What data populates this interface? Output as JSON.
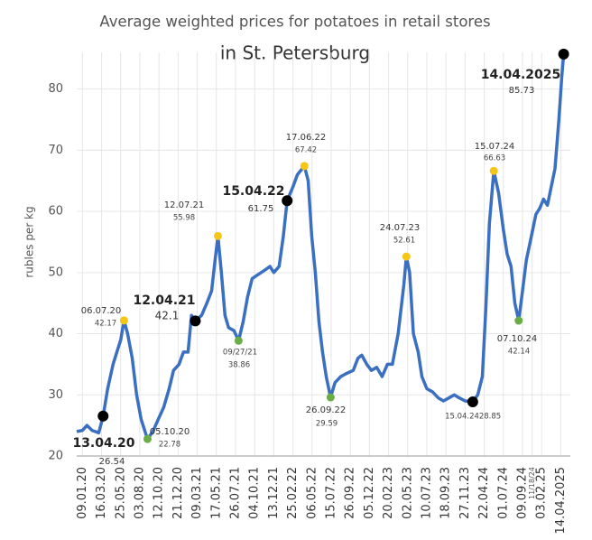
{
  "chart_data": {
    "type": "line",
    "title": "Average weighted prices for potatoes in retail stores",
    "subtitle": "in St. Petersburg",
    "ylabel": "rubles per kg",
    "ylim": [
      20,
      86
    ],
    "yticks": [
      20,
      30,
      40,
      50,
      60,
      70,
      80
    ],
    "xlim": [
      -0.3,
      25.5
    ],
    "xticks": [
      {
        "value": 0,
        "label": "09.01.20"
      },
      {
        "value": 1,
        "label": "16.03.20"
      },
      {
        "value": 2,
        "label": "25.05.20"
      },
      {
        "value": 3,
        "label": "03.08.20"
      },
      {
        "value": 4,
        "label": "12.10.20"
      },
      {
        "value": 5,
        "label": "21.12.20"
      },
      {
        "value": 6,
        "label": "09.03.21"
      },
      {
        "value": 7,
        "label": "17.05.21"
      },
      {
        "value": 8,
        "label": "26.07.21"
      },
      {
        "value": 9,
        "label": "04.10.21"
      },
      {
        "value": 10,
        "label": "13.12.21"
      },
      {
        "value": 11,
        "label": "25.02.22"
      },
      {
        "value": 12,
        "label": "06.05.22"
      },
      {
        "value": 13,
        "label": "15.07.22"
      },
      {
        "value": 14,
        "label": "26.09.22"
      },
      {
        "value": 15,
        "label": "05.12.22"
      },
      {
        "value": 16,
        "label": "20.02.23"
      },
      {
        "value": 17,
        "label": "02.05.23"
      },
      {
        "value": 18,
        "label": "10.07.23"
      },
      {
        "value": 19,
        "label": "18.09.23"
      },
      {
        "value": 20,
        "label": "27.11.23"
      },
      {
        "value": 21,
        "label": "22.04.24"
      },
      {
        "value": 22,
        "label": "01.07.24"
      },
      {
        "value": 23,
        "label": "09.09.24"
      },
      {
        "value": 23.5,
        "label": "11/18/24"
      },
      {
        "value": 24,
        "label": "03.02.25"
      },
      {
        "value": 25,
        "label": "14.04.2025"
      }
    ],
    "grid": true,
    "series": [
      {
        "name": "price",
        "color": "#3a6fc2",
        "x": [
          -0.3,
          0,
          0.24,
          0.5,
          0.85,
          1.08,
          1.32,
          1.6,
          1.8,
          2.0,
          2.17,
          2.36,
          2.6,
          2.83,
          3.07,
          3.4,
          3.68,
          3.96,
          4.25,
          4.53,
          4.76,
          5.05,
          5.28,
          5.52,
          5.7,
          5.9,
          6.23,
          6.5,
          6.75,
          6.93,
          7.08,
          7.26,
          7.45,
          7.64,
          7.92,
          8.16,
          8.4,
          8.63,
          8.87,
          9.1,
          9.34,
          9.58,
          9.8,
          10.0,
          10.28,
          10.5,
          10.7,
          11.0,
          11.23,
          11.6,
          11.8,
          11.98,
          12.17,
          12.36,
          12.55,
          12.74,
          12.97,
          13.2,
          13.5,
          13.8,
          14.15,
          14.4,
          14.6,
          14.86,
          15.1,
          15.38,
          15.66,
          15.94,
          16.2,
          16.5,
          16.8,
          16.93,
          17.1,
          17.3,
          17.55,
          17.74,
          18.0,
          18.3,
          18.6,
          18.87,
          19.15,
          19.43,
          19.7,
          20.0,
          20.4,
          20.66,
          20.9,
          21.08,
          21.27,
          21.5,
          21.75,
          22.0,
          22.2,
          22.4,
          22.6,
          22.8,
          23.0,
          23.2,
          23.4,
          23.7,
          23.9,
          24.1,
          24.3,
          24.5,
          24.7,
          24.9,
          25.05,
          25.15
        ],
        "values": [
          24,
          24.2,
          25,
          24.2,
          23.8,
          26.54,
          31,
          35,
          37,
          39,
          42.17,
          40,
          36,
          30,
          26,
          22.78,
          24,
          26,
          28,
          31,
          34,
          35,
          37,
          37,
          43,
          42.1,
          43,
          45,
          47,
          52,
          55.98,
          50,
          43,
          41,
          40.5,
          38.86,
          42,
          46,
          49,
          49.5,
          50,
          50.5,
          51,
          50,
          51,
          56,
          61.75,
          64,
          66,
          67.42,
          65,
          56,
          50,
          42,
          37,
          33,
          29.59,
          32,
          33,
          33.5,
          34,
          36,
          36.5,
          35,
          34,
          34.5,
          33,
          35,
          35,
          40,
          48,
          52.61,
          50,
          40,
          37,
          33,
          31,
          30.5,
          29.5,
          29,
          29.5,
          30,
          29.5,
          29,
          28.85,
          30,
          33,
          44,
          58,
          66.63,
          63,
          57,
          53,
          51,
          45,
          42.14,
          47,
          52,
          55,
          59.5,
          60.5,
          62,
          61,
          64,
          67,
          75,
          82,
          85.73
        ]
      }
    ],
    "annotations": [
      {
        "x": 1.08,
        "label": "13.04.20",
        "value": 26.54,
        "color": "#000000"
      },
      {
        "x": 2.17,
        "label": "06.07.20",
        "value": 42.17,
        "color": "#f5c518"
      },
      {
        "x": 3.4,
        "label": "05.10.20",
        "value": 22.78,
        "color": "#6aad45"
      },
      {
        "x": 5.9,
        "label": "12.04.21",
        "value": 42.1,
        "color": "#000000"
      },
      {
        "x": 7.08,
        "label": "12.07.21",
        "value": 55.98,
        "color": "#f5c518"
      },
      {
        "x": 8.16,
        "label": "09/27/21",
        "value": 38.86,
        "color": "#6aad45"
      },
      {
        "x": 10.7,
        "label": "15.04.22",
        "value": 61.75,
        "color": "#000000"
      },
      {
        "x": 11.6,
        "label": "17.06.22",
        "value": 67.42,
        "color": "#f5c518"
      },
      {
        "x": 12.97,
        "label": "26.09.22",
        "value": 29.59,
        "color": "#6aad45"
      },
      {
        "x": 16.93,
        "label": "24.07.23",
        "value": 52.61,
        "color": "#f5c518"
      },
      {
        "x": 20.4,
        "label": "15.04.24",
        "value": 28.85,
        "color": "#000000"
      },
      {
        "x": 21.5,
        "label": "15.07.24",
        "value": 66.63,
        "color": "#f5c518"
      },
      {
        "x": 22.8,
        "label": "07.10.24",
        "value": 42.14,
        "color": "#6aad45"
      },
      {
        "x": 25.15,
        "label": "14.04.2025",
        "value": 85.73,
        "color": "#000000"
      }
    ]
  }
}
